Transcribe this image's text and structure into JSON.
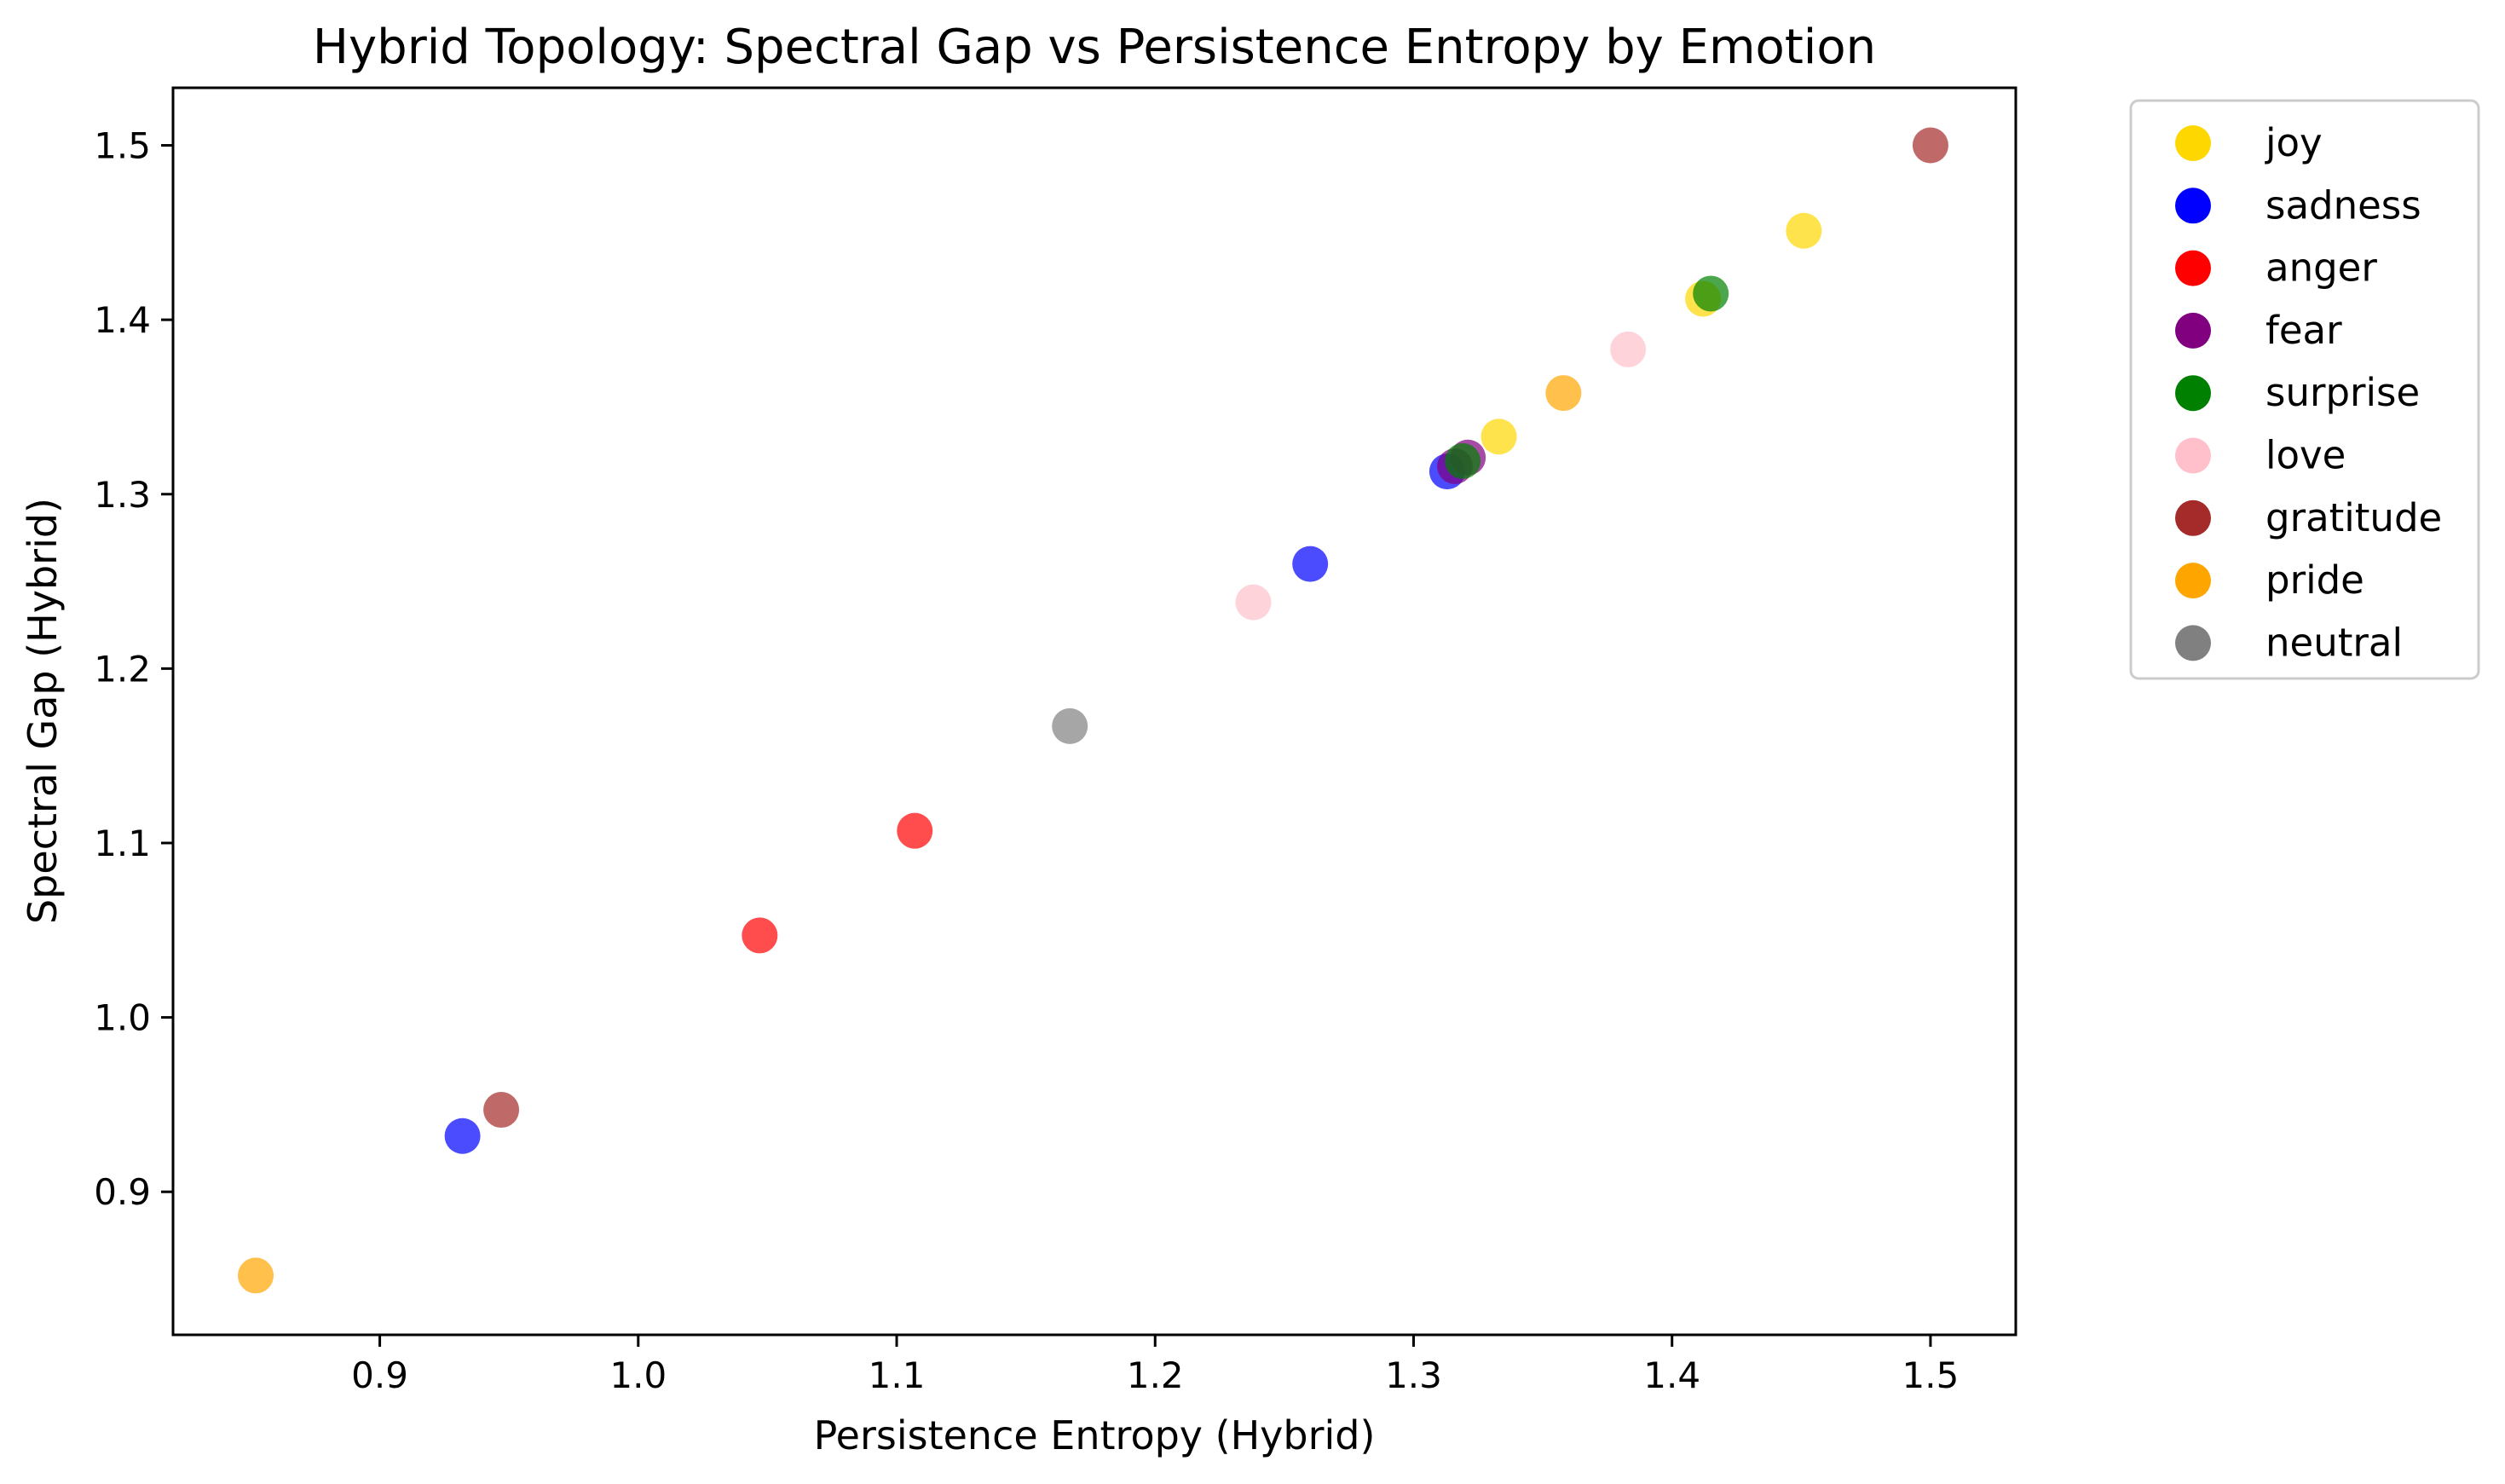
{
  "chart_data": {
    "type": "scatter",
    "title": "Hybrid Topology: Spectral Gap vs Persistence Entropy by Emotion",
    "xlabel": "Persistence Entropy (Hybrid)",
    "ylabel": "Spectral Gap (Hybrid)",
    "xlim": [
      0.82,
      1.533
    ],
    "ylim": [
      0.818,
      1.533
    ],
    "xticks": [
      "0.9",
      "1.0",
      "1.1",
      "1.2",
      "1.3",
      "1.4",
      "1.5"
    ],
    "yticks": [
      "0.9",
      "1.0",
      "1.1",
      "1.2",
      "1.3",
      "1.4",
      "1.5"
    ],
    "grid": false,
    "legend_position": "outside-right-top",
    "series": [
      {
        "name": "joy",
        "color": "#FFD700",
        "points": [
          [
            1.333,
            1.333
          ],
          [
            1.412,
            1.412
          ],
          [
            1.451,
            1.451
          ]
        ]
      },
      {
        "name": "sadness",
        "color": "#0000FF",
        "points": [
          [
            0.932,
            0.932
          ],
          [
            1.26,
            1.26
          ],
          [
            1.313,
            1.313
          ]
        ]
      },
      {
        "name": "anger",
        "color": "#FF0000",
        "points": [
          [
            1.047,
            1.047
          ],
          [
            1.107,
            1.107
          ]
        ]
      },
      {
        "name": "fear",
        "color": "#800080",
        "points": [
          [
            1.316,
            1.316
          ],
          [
            1.321,
            1.321
          ]
        ]
      },
      {
        "name": "surprise",
        "color": "#008000",
        "points": [
          [
            1.319,
            1.319
          ],
          [
            1.415,
            1.415
          ]
        ]
      },
      {
        "name": "love",
        "color": "#FFC0CB",
        "points": [
          [
            1.238,
            1.238
          ],
          [
            1.383,
            1.383
          ]
        ]
      },
      {
        "name": "gratitude",
        "color": "#A52A2A",
        "points": [
          [
            0.947,
            0.947
          ],
          [
            1.5,
            1.5
          ]
        ]
      },
      {
        "name": "pride",
        "color": "#FFA500",
        "points": [
          [
            0.852,
            0.852
          ],
          [
            1.358,
            1.358
          ]
        ]
      },
      {
        "name": "neutral",
        "color": "#808080",
        "points": [
          [
            1.167,
            1.167
          ]
        ]
      }
    ]
  }
}
